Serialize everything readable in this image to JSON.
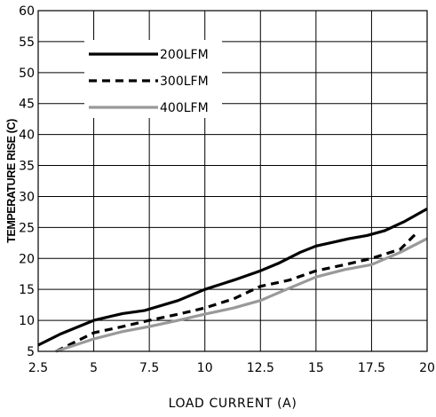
{
  "chart_data": {
    "type": "line",
    "title": "",
    "xlabel": "LOAD CURRENT (A)",
    "ylabel": "TEMPERATURE RISE (C)",
    "xlim": [
      2.5,
      20
    ],
    "ylim": [
      5,
      60
    ],
    "xticks": [
      "2.5",
      "5",
      "7.5",
      "10",
      "12.5",
      "15",
      "17.5",
      "20"
    ],
    "xtick_values": [
      2.5,
      5,
      7.5,
      10,
      12.5,
      15,
      17.5,
      20
    ],
    "yticks": [
      "5",
      "10",
      "15",
      "20",
      "25",
      "30",
      "35",
      "40",
      "45",
      "50",
      "55",
      "60"
    ],
    "ytick_values": [
      5,
      10,
      15,
      20,
      25,
      30,
      35,
      40,
      45,
      50,
      55,
      60
    ],
    "grid": true,
    "legend_position": "top-left",
    "series": [
      {
        "name": "200LFM",
        "color": "#000000",
        "style": "solid",
        "x": [
          2.5,
          3.5,
          5,
          6.3,
          7.3,
          8.8,
          10,
          11.3,
          12.5,
          13.3,
          14.3,
          15,
          16.5,
          17.3,
          18.1,
          19,
          20
        ],
        "y": [
          6,
          7.8,
          10,
          11.1,
          11.6,
          13.2,
          15,
          16.5,
          18,
          19.2,
          21,
          22,
          23.2,
          23.7,
          24.5,
          26,
          28
        ]
      },
      {
        "name": "300LFM",
        "color": "#000000",
        "style": "dashed",
        "x": [
          3.3,
          5,
          6.3,
          7.5,
          8.8,
          10,
          11.3,
          12.5,
          13.8,
          15,
          16.3,
          17.5,
          18.8,
          19.5
        ],
        "y": [
          5,
          8,
          9,
          10,
          11,
          12,
          13.5,
          15.5,
          16.5,
          18,
          19,
          20,
          21.5,
          24
        ]
      },
      {
        "name": "400LFM",
        "color": "#999999",
        "style": "solid",
        "x": [
          3.3,
          5,
          6.3,
          7.5,
          8.8,
          10,
          11.3,
          12.5,
          13.8,
          15,
          16.3,
          17.5,
          18.8,
          20
        ],
        "y": [
          5,
          7,
          8.2,
          9,
          10,
          11,
          12,
          13.2,
          15.2,
          17,
          18.2,
          19,
          21,
          23.2
        ]
      }
    ]
  }
}
